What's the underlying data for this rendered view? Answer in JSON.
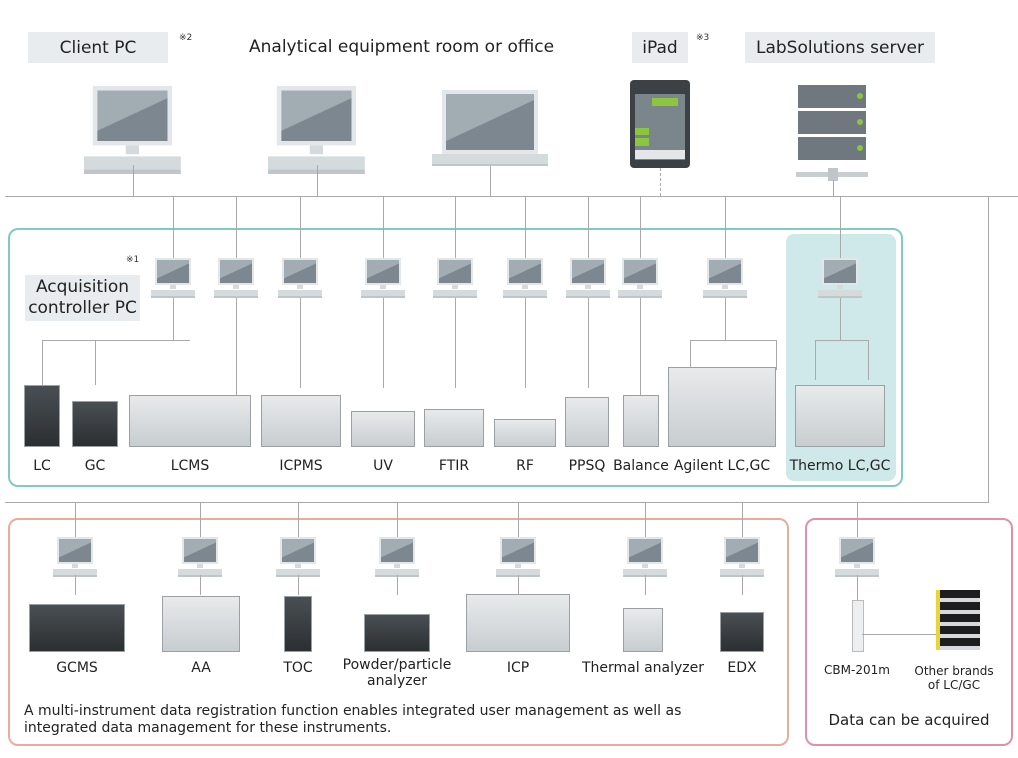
{
  "header": {
    "client_pc": "Client PC",
    "client_pc_note": "※2",
    "room": "Analytical equipment room or office",
    "ipad": "iPad",
    "ipad_note": "※3",
    "server": "LabSolutions server"
  },
  "acquisition": {
    "label_line1": "Acquisition",
    "label_line2": "controller PC",
    "note": "※1"
  },
  "instruments_top": [
    "LC",
    "GC",
    "LCMS",
    "ICPMS",
    "UV",
    "FTIR",
    "RF",
    "PPSQ",
    "Balance",
    "Agilent LC,GC",
    "Thermo LC,GC"
  ],
  "instruments_bottom": [
    "GCMS",
    "AA",
    "TOC",
    "Powder/particle\nanalyzer",
    "ICP",
    "Thermal analyzer",
    "EDX"
  ],
  "bottom_text_line1": "A multi-instrument data registration function enables integrated user management as well as",
  "bottom_text_line2": "integrated data management for these instruments.",
  "other": {
    "cbm": "CBM-201m",
    "other_brands_line1": "Other brands",
    "other_brands_line2": "of LC/GC",
    "caption": "Data can be acquired"
  },
  "colors": {
    "teal_border": "#7fcbc2",
    "thermo_bg": "#cfe9ea",
    "orange_border": "#eaab9b",
    "pink_border": "#e58eab",
    "accent_green": "#8cc63f",
    "label_bg": "#e9ecee"
  }
}
